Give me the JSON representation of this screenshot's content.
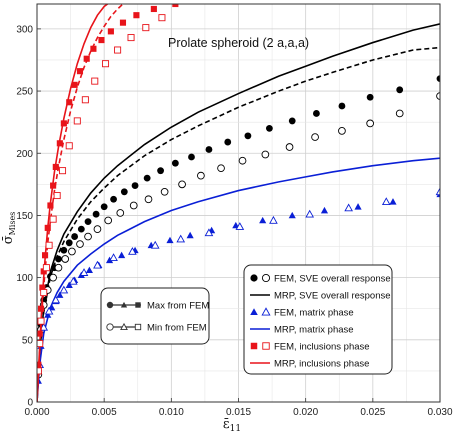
{
  "chart_data": {
    "type": "scatter",
    "xlabel": "ε̄",
    "xlabel_sub": "11",
    "ylabel": "σ̄",
    "ylabel_sub": "Mises",
    "xlim": [
      0,
      0.03
    ],
    "ylim": [
      0,
      320
    ],
    "xticks": [
      0,
      0.005,
      0.01,
      0.015,
      0.02,
      0.025,
      0.03
    ],
    "xtick_labels": [
      "0.000",
      "0.005",
      "0.010",
      "0.015",
      "0.020",
      "0.025",
      "0.030"
    ],
    "yticks": [
      0,
      50,
      100,
      150,
      200,
      250,
      300
    ],
    "ytick_labels": [
      "0",
      "50",
      "100",
      "150",
      "200",
      "250",
      "300"
    ],
    "grid": true,
    "annotation": "Prolate spheroid (2 a,a,a)",
    "colors": {
      "sve": "#000000",
      "matrix": "#0a1fd6",
      "inclusion": "#e8141a"
    },
    "series": [
      {
        "name": "MRP, SVE overall response",
        "kind": "line-solid",
        "group": "sve",
        "x": [
          0,
          0.0002,
          0.0005,
          0.001,
          0.0015,
          0.002,
          0.003,
          0.004,
          0.005,
          0.006,
          0.008,
          0.01,
          0.012,
          0.015,
          0.018,
          0.02,
          0.022,
          0.025,
          0.028,
          0.03
        ],
        "y": [
          0,
          40,
          75,
          105,
          122,
          135,
          153,
          168,
          180,
          190,
          207,
          221,
          233,
          248,
          262,
          270,
          278,
          289,
          299,
          304
        ]
      },
      {
        "name": "MRP, SVE overall response (min)",
        "kind": "line-dashed",
        "group": "sve",
        "x": [
          0,
          0.0002,
          0.0005,
          0.001,
          0.0015,
          0.002,
          0.003,
          0.004,
          0.005,
          0.006,
          0.008,
          0.01,
          0.012,
          0.015,
          0.018,
          0.02,
          0.022,
          0.025,
          0.028,
          0.03
        ],
        "y": [
          0,
          38,
          72,
          101,
          117,
          129,
          147,
          161,
          172,
          182,
          198,
          211,
          222,
          237,
          250,
          258,
          265,
          275,
          283,
          285
        ]
      },
      {
        "name": "FEM, SVE overall response (max)",
        "kind": "marker-filled-circle",
        "group": "sve",
        "x": [
          0.0001,
          0.0003,
          0.0005,
          0.0007,
          0.001,
          0.0013,
          0.0016,
          0.002,
          0.0024,
          0.0028,
          0.0033,
          0.0038,
          0.0044,
          0.005,
          0.0057,
          0.0065,
          0.0073,
          0.0082,
          0.0092,
          0.0103,
          0.0115,
          0.0128,
          0.0142,
          0.0157,
          0.0173,
          0.019,
          0.0208,
          0.0227,
          0.0248,
          0.027,
          0.03
        ],
        "y": [
          25,
          62,
          82,
          92,
          101,
          108,
          115,
          122,
          128,
          133,
          139,
          145,
          151,
          157,
          163,
          169,
          174,
          180,
          186,
          192,
          197,
          203,
          209,
          214,
          220,
          226,
          232,
          238,
          245,
          251,
          260
        ]
      },
      {
        "name": "FEM, SVE overall response (min)",
        "kind": "marker-open-circle",
        "group": "sve",
        "x": [
          0.0001,
          0.0003,
          0.0005,
          0.0008,
          0.0012,
          0.0016,
          0.0021,
          0.0026,
          0.0032,
          0.0038,
          0.0045,
          0.0053,
          0.0062,
          0.0072,
          0.0083,
          0.0095,
          0.0108,
          0.0122,
          0.0137,
          0.0153,
          0.017,
          0.0188,
          0.0207,
          0.0227,
          0.0248,
          0.027,
          0.03
        ],
        "y": [
          22,
          58,
          78,
          90,
          100,
          108,
          115,
          121,
          127,
          133,
          139,
          146,
          152,
          158,
          163,
          169,
          175,
          182,
          188,
          194,
          199,
          205,
          213,
          218,
          224,
          232,
          246
        ]
      },
      {
        "name": "MRP, matrix phase",
        "kind": "line-solid",
        "group": "matrix",
        "x": [
          0,
          0.0002,
          0.0005,
          0.001,
          0.0015,
          0.002,
          0.003,
          0.004,
          0.005,
          0.006,
          0.008,
          0.01,
          0.012,
          0.015,
          0.018,
          0.02,
          0.022,
          0.025,
          0.028,
          0.03
        ],
        "y": [
          0,
          30,
          55,
          76,
          88,
          97,
          110,
          119,
          127,
          134,
          145,
          154,
          161,
          170,
          177,
          181,
          185,
          190,
          194,
          196
        ]
      },
      {
        "name": "FEM, matrix phase (max)",
        "kind": "marker-filled-triangle",
        "group": "matrix",
        "x": [
          0.0001,
          0.0003,
          0.0005,
          0.0008,
          0.0011,
          0.0014,
          0.0017,
          0.002,
          0.0024,
          0.0028,
          0.0033,
          0.0039,
          0.0046,
          0.0054,
          0.0063,
          0.0073,
          0.0085,
          0.0099,
          0.0114,
          0.013,
          0.0148,
          0.0168,
          0.019,
          0.0214,
          0.0239,
          0.0265,
          0.03
        ],
        "y": [
          17,
          45,
          60,
          70,
          76,
          81,
          86,
          90,
          94,
          98,
          102,
          106,
          110,
          114,
          118,
          122,
          126,
          130,
          134,
          138,
          142,
          146,
          150,
          154,
          157,
          161,
          167
        ]
      },
      {
        "name": "FEM, matrix phase (min)",
        "kind": "marker-open-triangle",
        "group": "matrix",
        "x": [
          0.0002,
          0.0005,
          0.0009,
          0.0014,
          0.002,
          0.0027,
          0.0035,
          0.0045,
          0.0057,
          0.0071,
          0.0088,
          0.0107,
          0.0128,
          0.0151,
          0.0176,
          0.0203,
          0.0232,
          0.026,
          0.03
        ],
        "y": [
          30,
          60,
          73,
          82,
          90,
          97,
          104,
          110,
          116,
          121,
          126,
          131,
          136,
          141,
          146,
          151,
          156,
          161,
          169
        ]
      },
      {
        "name": "MRP, inclusions phase",
        "kind": "line-solid",
        "group": "inclusion",
        "x": [
          0,
          0.0002,
          0.0004,
          0.0006,
          0.0008,
          0.001,
          0.0013,
          0.0016,
          0.002,
          0.0025,
          0.003,
          0.0035,
          0.004,
          0.0045,
          0.005,
          0.0055,
          0.0058
        ],
        "y": [
          0,
          45,
          85,
          115,
          140,
          160,
          185,
          205,
          228,
          252,
          272,
          288,
          301,
          311,
          318,
          322,
          325
        ]
      },
      {
        "name": "MRP, inclusions phase (min)",
        "kind": "line-dashed",
        "group": "inclusion",
        "x": [
          0,
          0.0002,
          0.0004,
          0.0006,
          0.0008,
          0.001,
          0.0013,
          0.0016,
          0.002,
          0.0025,
          0.003,
          0.0035,
          0.004,
          0.0045,
          0.005,
          0.0055,
          0.006,
          0.0065,
          0.0069
        ],
        "y": [
          0,
          40,
          78,
          106,
          128,
          146,
          170,
          189,
          211,
          234,
          253,
          269,
          282,
          293,
          302,
          310,
          316,
          321,
          324
        ]
      },
      {
        "name": "FEM, inclusions phase (max)",
        "kind": "marker-filled-square",
        "group": "inclusion",
        "x": [
          0.0001,
          0.0002,
          0.0003,
          0.0004,
          0.0005,
          0.0006,
          0.0008,
          0.001,
          0.0012,
          0.0014,
          0.0017,
          0.002,
          0.0024,
          0.0028,
          0.0032,
          0.0037,
          0.0042,
          0.0048,
          0.0055,
          0.0064,
          0.0074,
          0.0087,
          0.0103
        ],
        "y": [
          30,
          55,
          75,
          92,
          105,
          118,
          140,
          158,
          174,
          189,
          208,
          224,
          241,
          255,
          266,
          276,
          284,
          291,
          298,
          305,
          311,
          316,
          320
        ]
      },
      {
        "name": "FEM, inclusions phase (min)",
        "kind": "marker-open-square",
        "group": "inclusion",
        "x": [
          0.0001,
          0.0002,
          0.0003,
          0.0005,
          0.0007,
          0.0009,
          0.0012,
          0.0015,
          0.0019,
          0.0024,
          0.003,
          0.0036,
          0.0043,
          0.0051,
          0.006,
          0.007,
          0.0081,
          0.0093
        ],
        "y": [
          25,
          47,
          65,
          88,
          108,
          126,
          147,
          166,
          186,
          206,
          226,
          243,
          258,
          272,
          283,
          293,
          301,
          309
        ]
      }
    ],
    "legend_main": {
      "placement": "bottom-right",
      "entries": [
        {
          "label": "FEM, SVE overall response",
          "kind": "circles-pair",
          "group": "sve"
        },
        {
          "label": "MRP, SVE overall response",
          "kind": "line",
          "group": "sve"
        },
        {
          "label": "FEM, matrix phase",
          "kind": "triangles-pair",
          "group": "matrix"
        },
        {
          "label": "MRP, matrix phase",
          "kind": "line",
          "group": "matrix"
        },
        {
          "label": "FEM, inclusions phase",
          "kind": "squares-pair",
          "group": "inclusion"
        },
        {
          "label": "MRP, inclusions phase",
          "kind": "line",
          "group": "inclusion"
        }
      ]
    },
    "legend_minmax": {
      "placement": "lower-center",
      "entries": [
        {
          "label": "Max from FEM",
          "kind": "max-line"
        },
        {
          "label": "Min from FEM",
          "kind": "min-line"
        }
      ]
    }
  }
}
